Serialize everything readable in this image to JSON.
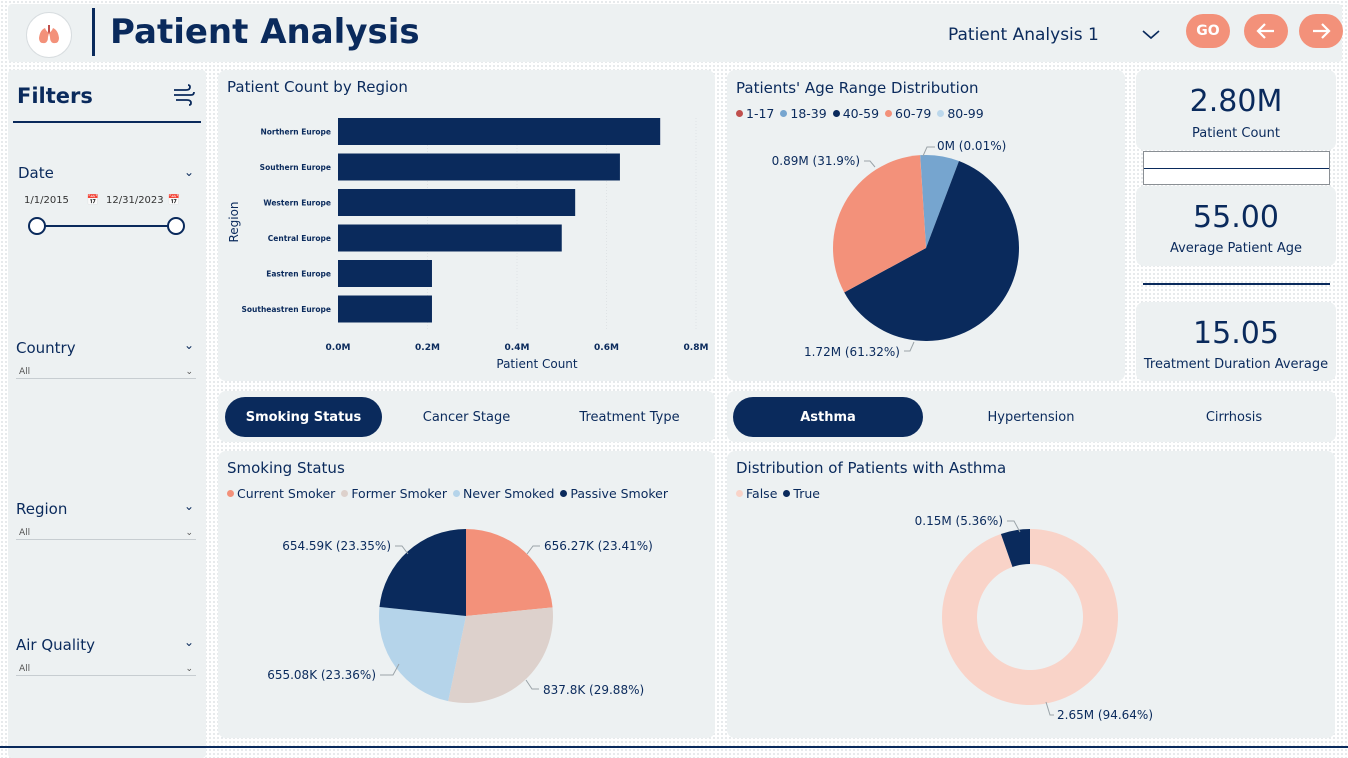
{
  "header": {
    "title": "Patient Analysis",
    "page_select": "Patient Analysis 1",
    "go_label": "GO",
    "back_icon": "arrow-left-icon",
    "forward_icon": "arrow-right-icon",
    "logo_icon": "lungs-icon"
  },
  "colors": {
    "navy": "#0a2a5c",
    "salmon": "#f3917a",
    "panel": "#edf1f2"
  },
  "filters": {
    "title": "Filters",
    "date": {
      "label": "Date",
      "start": "1/1/2015",
      "end": "12/31/2023"
    },
    "country": {
      "label": "Country",
      "value": "All"
    },
    "region": {
      "label": "Region",
      "value": "All"
    },
    "air_quality": {
      "label": "Air Quality",
      "value": "All"
    }
  },
  "region_chart": {
    "title": "Patient Count by Region",
    "chart_data": {
      "type": "bar",
      "orientation": "horizontal",
      "categories": [
        "Northern Europe",
        "Southern Europe",
        "Western Europe",
        "Central Europe",
        "Eastren Europe",
        "Southeastren Europe"
      ],
      "values": [
        0.72,
        0.63,
        0.53,
        0.5,
        0.21,
        0.21
      ],
      "ticks": [
        "0.0M",
        "0.2M",
        "0.4M",
        "0.6M",
        "0.8M"
      ],
      "xlim": [
        0,
        0.8
      ],
      "xlabel": "Patient Count",
      "ylabel": "Region",
      "color": "#0a2a5c"
    }
  },
  "age_chart": {
    "title": "Patients' Age Range Distribution",
    "chart_data": {
      "type": "pie",
      "labels": [
        "1-17",
        "18-39",
        "40-59",
        "60-79",
        "80-99"
      ],
      "colors": [
        "#c0504d",
        "#76a5cf",
        "#0a2a5c",
        "#f3917a",
        "#bcd8ec"
      ],
      "values": [
        0.0001,
        6.77,
        61.32,
        31.9,
        0.01
      ],
      "data_labels": [
        "",
        "",
        "1.72M (61.32%)",
        "0.89M (31.9%)",
        "0M (0.01%)"
      ]
    }
  },
  "kpis": {
    "patient_count": {
      "value": "2.80M",
      "label": "Patient Count"
    },
    "avg_age": {
      "value": "55.00",
      "label": "Average Patient Age"
    },
    "treatment": {
      "value": "15.05",
      "label": "Treatment Duration Average"
    }
  },
  "tabs_left": [
    "Smoking Status",
    "Cancer Stage",
    "Treatment Type"
  ],
  "tabs_right": [
    "Asthma",
    "Hypertension",
    "Cirrhosis"
  ],
  "smoking_chart": {
    "title": "Smoking Status",
    "chart_data": {
      "type": "pie",
      "labels": [
        "Current Smoker",
        "Former Smoker",
        "Never Smoked",
        "Passive Smoker"
      ],
      "colors": [
        "#f3917a",
        "#ddd1cc",
        "#b5d4ea",
        "#0a2a5c"
      ],
      "values": [
        23.41,
        29.88,
        23.36,
        23.35
      ],
      "data_labels": [
        "656.27K (23.41%)",
        "837.8K (29.88%)",
        "655.08K (23.36%)",
        "654.59K (23.35%)"
      ]
    }
  },
  "asthma_chart": {
    "title": "Distribution of Patients with Asthma",
    "chart_data": {
      "type": "pie",
      "style": "donut",
      "labels": [
        "False",
        "True"
      ],
      "colors": [
        "#f9d3c8",
        "#0a2a5c"
      ],
      "values": [
        94.64,
        5.36
      ],
      "data_labels": [
        "2.65M (94.64%)",
        "0.15M (5.36%)"
      ]
    }
  }
}
